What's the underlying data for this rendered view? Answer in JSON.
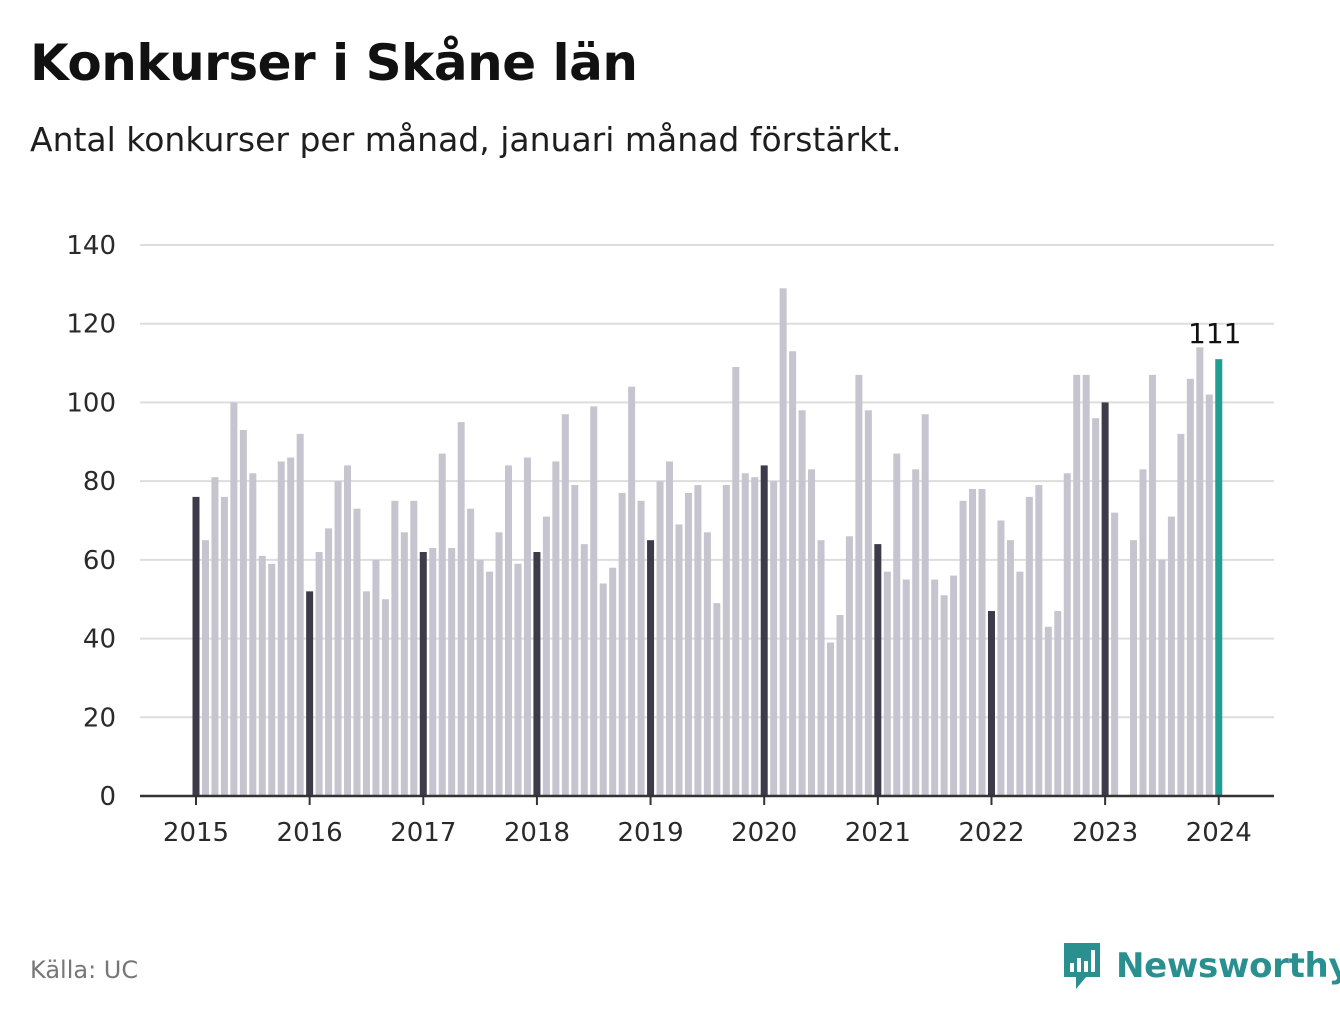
{
  "title": "Konkurser i Skåne län",
  "subtitle": "Antal konkurser per månad, januari månad förstärkt.",
  "source": "Källa: UC",
  "brand": {
    "name": "Newsworthy",
    "icon": "newsworthy-logo-icon",
    "color": "#2a8f8f"
  },
  "colors": {
    "other": "#c6c4cf",
    "january": "#3d3b4a",
    "latest": "#1f9e93",
    "grid": "#dddddd",
    "axis": "#333333"
  },
  "chart_data": {
    "type": "bar",
    "title": "Konkurser i Skåne län",
    "subtitle": "Antal konkurser per månad, januari månad förstärkt.",
    "xlabel": "",
    "ylabel": "",
    "ylim": [
      0,
      140
    ],
    "yticks": [
      0,
      20,
      40,
      60,
      80,
      100,
      120,
      140
    ],
    "xticks": [
      "2015",
      "2016",
      "2017",
      "2018",
      "2019",
      "2020",
      "2021",
      "2022",
      "2023",
      "2024"
    ],
    "grid": true,
    "start": "2015-01",
    "highlight": "January bars are emphasized; the latest month is highlighted",
    "latest_label": "111",
    "values": [
      76,
      65,
      81,
      76,
      100,
      93,
      82,
      61,
      59,
      85,
      86,
      92,
      52,
      62,
      68,
      80,
      84,
      73,
      52,
      60,
      50,
      75,
      67,
      75,
      62,
      63,
      87,
      63,
      95,
      73,
      60,
      57,
      67,
      84,
      59,
      86,
      62,
      71,
      85,
      97,
      79,
      64,
      99,
      54,
      58,
      77,
      104,
      75,
      65,
      80,
      85,
      69,
      77,
      79,
      67,
      49,
      79,
      109,
      82,
      81,
      84,
      80,
      129,
      113,
      98,
      83,
      65,
      39,
      46,
      66,
      107,
      98,
      64,
      57,
      87,
      55,
      83,
      97,
      55,
      51,
      56,
      75,
      78,
      78,
      47,
      70,
      65,
      57,
      76,
      79,
      43,
      47,
      82,
      107,
      107,
      96,
      100,
      72,
      0,
      65,
      83,
      107,
      60,
      71,
      92,
      106,
      114,
      102,
      111
    ]
  }
}
